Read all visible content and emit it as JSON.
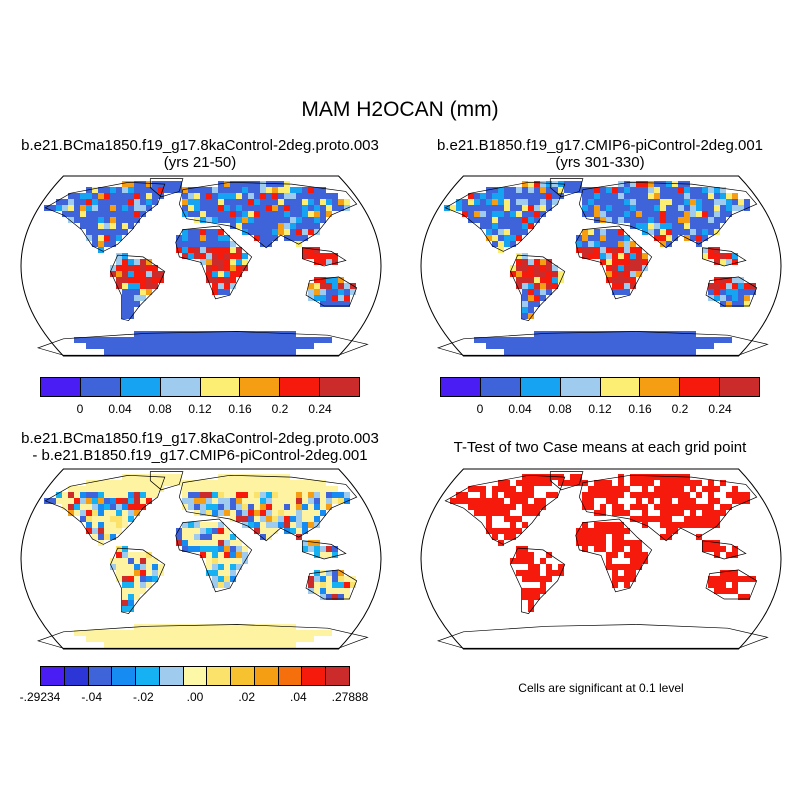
{
  "title": "MAM H2OCAN (mm)",
  "panels": {
    "top_left": {
      "title_line1": "b.e21.BCma1850.f19_g17.8kaControl-2deg.proto.003",
      "title_line2": "(yrs 21-50)"
    },
    "top_right": {
      "title_line1": "b.e21.B1850.f19_g17.CMIP6-piControl-2deg.001",
      "title_line2": "(yrs 301-330)"
    },
    "bottom_left": {
      "title_line1": "b.e21.BCma1850.f19_g17.8kaControl-2deg.proto.003",
      "title_line2": "- b.e21.B1850.f19_g17.CMIP6-piControl-2deg.001"
    },
    "bottom_right": {
      "title_line1": "T-Test of two Case means at each grid point",
      "note": "Cells are significant at 0.1 level"
    }
  },
  "colorbar_abs": {
    "colors": [
      "#4a1df5",
      "#3f63d9",
      "#16a3f2",
      "#9fcbee",
      "#fbee72",
      "#f59d13",
      "#f51a0b",
      "#cb2b2b"
    ],
    "labels": [
      "0",
      "0.04",
      "0.08",
      "0.12",
      "0.16",
      "0.2",
      "0.24"
    ]
  },
  "colorbar_diff": {
    "colors": [
      "#4a1df5",
      "#2c35d6",
      "#3f63d9",
      "#168cf2",
      "#16b1f2",
      "#9fcbee",
      "#fdf7a8",
      "#fbe26a",
      "#f6c230",
      "#f59d13",
      "#f5700c",
      "#f51a0b",
      "#cb2b2b"
    ],
    "labels": [
      "-.29234",
      "-.04",
      "-.02",
      ".00",
      ".02",
      ".04",
      ".27888"
    ]
  },
  "map_colors": {
    "land_low": "#3f63d9",
    "ocean": "#ffffff",
    "diff_base": "#fdf3a0",
    "significant": "#f51a0b"
  }
}
